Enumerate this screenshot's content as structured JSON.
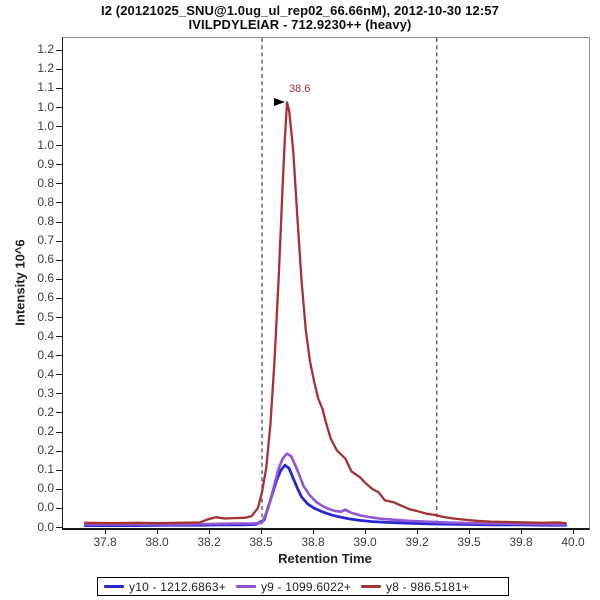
{
  "title": {
    "line1": "I2 (20121025_SNU@1.0ug_ul_rep02_66.66nM), 2012-10-30 12:57",
    "line2": "IVILPDYLEIAR - 712.9230++ (heavy)"
  },
  "axes": {
    "y": {
      "label": "Intensity 10^6",
      "tick_labels_top_to_bottom": [
        "1.2",
        "1.2",
        "1.1",
        "1.0",
        "1.0",
        "1.0",
        "0.9",
        "0.8",
        "0.8",
        "0.8",
        "0.7",
        "0.6",
        "0.6",
        "0.6",
        "0.5",
        "0.4",
        "0.4",
        "0.4",
        "0.3",
        "0.2",
        "0.2",
        "0.2",
        "0.1",
        "0.0",
        "0.0",
        "0.0"
      ]
    },
    "x": {
      "label": "Retention Time",
      "ticks": [
        {
          "v": 37.75,
          "label": "37.8"
        },
        {
          "v": 38.0,
          "label": "38.0"
        },
        {
          "v": 38.25,
          "label": "38.2"
        },
        {
          "v": 38.5,
          "label": "38.5"
        },
        {
          "v": 38.75,
          "label": "38.8"
        },
        {
          "v": 39.0,
          "label": "39.0"
        },
        {
          "v": 39.25,
          "label": "39.2"
        },
        {
          "v": 39.5,
          "label": "39.5"
        },
        {
          "v": 39.75,
          "label": "39.8"
        },
        {
          "v": 40.0,
          "label": "40.0"
        }
      ]
    }
  },
  "legend": {
    "items": [
      {
        "id": "y10",
        "label": "y10 - 1212.6863+",
        "color": "#2828d2"
      },
      {
        "id": "y9",
        "label": "y9 - 1099.6022+",
        "color": "#9355d4"
      },
      {
        "id": "y8",
        "label": "y8 - 986.5181+",
        "color": "#a43331"
      }
    ]
  },
  "chart_data": {
    "type": "line",
    "title": "I2 (20121025_SNU@1.0ug_ul_rep02_66.66nM), 2012-10-30 12:57",
    "subtitle": "IVILPDYLEIAR - 712.9230++ (heavy)",
    "xlabel": "Retention Time",
    "ylabel": "Intensity 10^6",
    "xlim": [
      37.543,
      40.072
    ],
    "ylim": [
      0,
      1.232
    ],
    "grid": false,
    "legend_position": "bottom",
    "peak_boundaries": [
      38.5,
      39.34
    ],
    "peak_annotation": {
      "rt": 38.615,
      "intensity": 1.08,
      "label": "38.6",
      "marker": "right-arrow"
    },
    "series": [
      {
        "id": "y10",
        "name": "y10 - 1212.6863+",
        "color": "#2828d2",
        "width": 2.8,
        "points": [
          [
            37.65,
            0.006
          ],
          [
            37.75,
            0.006
          ],
          [
            37.9,
            0.006
          ],
          [
            38.05,
            0.007
          ],
          [
            38.2,
            0.007
          ],
          [
            38.3,
            0.008
          ],
          [
            38.4,
            0.008
          ],
          [
            38.47,
            0.009
          ],
          [
            38.51,
            0.02
          ],
          [
            38.54,
            0.07
          ],
          [
            38.57,
            0.12
          ],
          [
            38.59,
            0.145
          ],
          [
            38.61,
            0.158
          ],
          [
            38.63,
            0.15
          ],
          [
            38.65,
            0.125
          ],
          [
            38.67,
            0.1
          ],
          [
            38.69,
            0.078
          ],
          [
            38.72,
            0.06
          ],
          [
            38.75,
            0.05
          ],
          [
            38.78,
            0.043
          ],
          [
            38.81,
            0.037
          ],
          [
            38.84,
            0.032
          ],
          [
            38.88,
            0.027
          ],
          [
            38.92,
            0.023
          ],
          [
            38.97,
            0.019
          ],
          [
            39.03,
            0.016
          ],
          [
            39.1,
            0.014
          ],
          [
            39.2,
            0.012
          ],
          [
            39.32,
            0.01
          ],
          [
            39.46,
            0.009
          ],
          [
            39.6,
            0.008
          ],
          [
            39.75,
            0.008
          ],
          [
            39.88,
            0.007
          ],
          [
            39.96,
            0.007
          ]
        ]
      },
      {
        "id": "y9",
        "name": "y9 - 1099.6022+",
        "color": "#9355d4",
        "width": 2.6,
        "points": [
          [
            37.65,
            0.009
          ],
          [
            37.8,
            0.009
          ],
          [
            37.95,
            0.009
          ],
          [
            38.1,
            0.009
          ],
          [
            38.25,
            0.01
          ],
          [
            38.35,
            0.011
          ],
          [
            38.45,
            0.011
          ],
          [
            38.5,
            0.013
          ],
          [
            38.53,
            0.05
          ],
          [
            38.56,
            0.11
          ],
          [
            38.58,
            0.15
          ],
          [
            38.6,
            0.175
          ],
          [
            38.62,
            0.187
          ],
          [
            38.64,
            0.18
          ],
          [
            38.66,
            0.158
          ],
          [
            38.68,
            0.132
          ],
          [
            38.7,
            0.105
          ],
          [
            38.73,
            0.082
          ],
          [
            38.76,
            0.066
          ],
          [
            38.79,
            0.055
          ],
          [
            38.82,
            0.048
          ],
          [
            38.85,
            0.043
          ],
          [
            38.88,
            0.041
          ],
          [
            38.9,
            0.046
          ],
          [
            38.93,
            0.038
          ],
          [
            38.97,
            0.032
          ],
          [
            39.01,
            0.028
          ],
          [
            39.06,
            0.024
          ],
          [
            39.12,
            0.021
          ],
          [
            39.2,
            0.018
          ],
          [
            39.28,
            0.016
          ],
          [
            39.38,
            0.014
          ],
          [
            39.5,
            0.012
          ],
          [
            39.64,
            0.011
          ],
          [
            39.8,
            0.01
          ],
          [
            39.96,
            0.009
          ]
        ]
      },
      {
        "id": "y8",
        "name": "y8 - 986.5181+",
        "color": "#a43331",
        "width": 2.3,
        "points": [
          [
            37.65,
            0.013
          ],
          [
            37.78,
            0.012
          ],
          [
            37.9,
            0.013
          ],
          [
            38.0,
            0.012
          ],
          [
            38.1,
            0.013
          ],
          [
            38.2,
            0.014
          ],
          [
            38.24,
            0.022
          ],
          [
            38.28,
            0.027
          ],
          [
            38.32,
            0.024
          ],
          [
            38.37,
            0.025
          ],
          [
            38.42,
            0.026
          ],
          [
            38.45,
            0.03
          ],
          [
            38.48,
            0.05
          ],
          [
            38.5,
            0.09
          ],
          [
            38.52,
            0.15
          ],
          [
            38.54,
            0.26
          ],
          [
            38.56,
            0.42
          ],
          [
            38.58,
            0.63
          ],
          [
            38.6,
            0.87
          ],
          [
            38.61,
            0.98
          ],
          [
            38.62,
            1.07
          ],
          [
            38.63,
            1.05
          ],
          [
            38.65,
            0.95
          ],
          [
            38.67,
            0.78
          ],
          [
            38.69,
            0.62
          ],
          [
            38.71,
            0.5
          ],
          [
            38.73,
            0.42
          ],
          [
            38.75,
            0.37
          ],
          [
            38.77,
            0.325
          ],
          [
            38.79,
            0.3
          ],
          [
            38.81,
            0.26
          ],
          [
            38.83,
            0.225
          ],
          [
            38.86,
            0.195
          ],
          [
            38.9,
            0.175
          ],
          [
            38.93,
            0.142
          ],
          [
            38.97,
            0.128
          ],
          [
            39.0,
            0.112
          ],
          [
            39.03,
            0.098
          ],
          [
            39.06,
            0.09
          ],
          [
            39.09,
            0.07
          ],
          [
            39.13,
            0.065
          ],
          [
            39.17,
            0.056
          ],
          [
            39.21,
            0.047
          ],
          [
            39.25,
            0.042
          ],
          [
            39.29,
            0.036
          ],
          [
            39.33,
            0.033
          ],
          [
            39.37,
            0.028
          ],
          [
            39.42,
            0.024
          ],
          [
            39.47,
            0.021
          ],
          [
            39.53,
            0.018
          ],
          [
            39.6,
            0.016
          ],
          [
            39.68,
            0.015
          ],
          [
            39.76,
            0.014
          ],
          [
            39.85,
            0.013
          ],
          [
            39.92,
            0.014
          ],
          [
            39.96,
            0.012
          ]
        ]
      }
    ]
  }
}
